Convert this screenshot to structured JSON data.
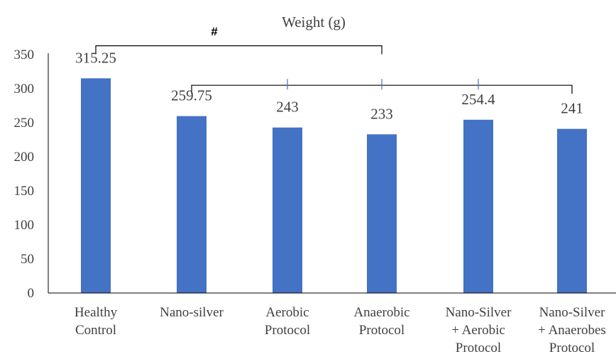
{
  "chart_data": {
    "type": "bar",
    "title": "Weight (g)",
    "categories": [
      [
        "Healthy",
        "Control"
      ],
      [
        "Nano-silver"
      ],
      [
        "Aerobic",
        "Protocol"
      ],
      [
        "Anaerobic",
        "Protocol"
      ],
      [
        "Nano-Silver",
        "+ Aerobic",
        "Protocol"
      ],
      [
        "Nano-Silver",
        "+ Anaerobes",
        "Protocol"
      ]
    ],
    "values": [
      315.25,
      259.75,
      243,
      233,
      254.4,
      241
    ],
    "value_labels": [
      "315.25",
      "259.75",
      "243",
      "233",
      "254.4",
      "241"
    ],
    "yticks": [
      "0",
      "50",
      "100",
      "150",
      "200",
      "250",
      "300",
      "350"
    ],
    "ylim": [
      0,
      350
    ],
    "grid": false,
    "bar_color": "#4472C4",
    "annotation": {
      "symbol": "#",
      "brackets": [
        {
          "from": 0,
          "to": 3,
          "level": 363
        },
        {
          "from": 1,
          "to": 5,
          "level": 305,
          "ticks": [
            2,
            3,
            4
          ]
        }
      ]
    }
  }
}
